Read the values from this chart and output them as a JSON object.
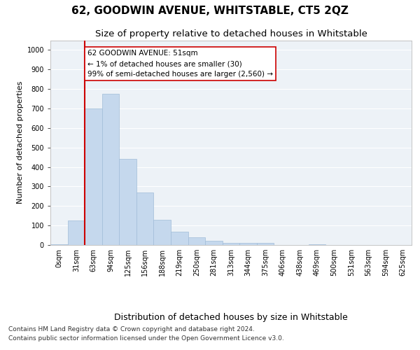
{
  "title": "62, GOODWIN AVENUE, WHITSTABLE, CT5 2QZ",
  "subtitle": "Size of property relative to detached houses in Whitstable",
  "xlabel": "Distribution of detached houses by size in Whitstable",
  "ylabel": "Number of detached properties",
  "categories": [
    "0sqm",
    "31sqm",
    "63sqm",
    "94sqm",
    "125sqm",
    "156sqm",
    "188sqm",
    "219sqm",
    "250sqm",
    "281sqm",
    "313sqm",
    "344sqm",
    "375sqm",
    "406sqm",
    "438sqm",
    "469sqm",
    "500sqm",
    "531sqm",
    "563sqm",
    "594sqm",
    "625sqm"
  ],
  "values": [
    5,
    125,
    700,
    775,
    440,
    270,
    130,
    70,
    38,
    22,
    10,
    10,
    10,
    0,
    0,
    5,
    0,
    0,
    0,
    0,
    0
  ],
  "bar_color": "#c5d8ed",
  "bar_edge_color": "#a0bcd8",
  "vline_x": 2.0,
  "vline_color": "#cc0000",
  "annotation_text": "62 GOODWIN AVENUE: 51sqm\n← 1% of detached houses are smaller (30)\n99% of semi-detached houses are larger (2,560) →",
  "annotation_box_color": "#ffffff",
  "annotation_box_edge": "#cc0000",
  "ylim": [
    0,
    1050
  ],
  "yticks": [
    0,
    100,
    200,
    300,
    400,
    500,
    600,
    700,
    800,
    900,
    1000
  ],
  "bg_color": "#edf2f7",
  "footer_line1": "Contains HM Land Registry data © Crown copyright and database right 2024.",
  "footer_line2": "Contains public sector information licensed under the Open Government Licence v3.0.",
  "title_fontsize": 11,
  "subtitle_fontsize": 9.5,
  "xlabel_fontsize": 9,
  "ylabel_fontsize": 8,
  "tick_fontsize": 7,
  "annotation_fontsize": 7.5,
  "footer_fontsize": 6.5
}
